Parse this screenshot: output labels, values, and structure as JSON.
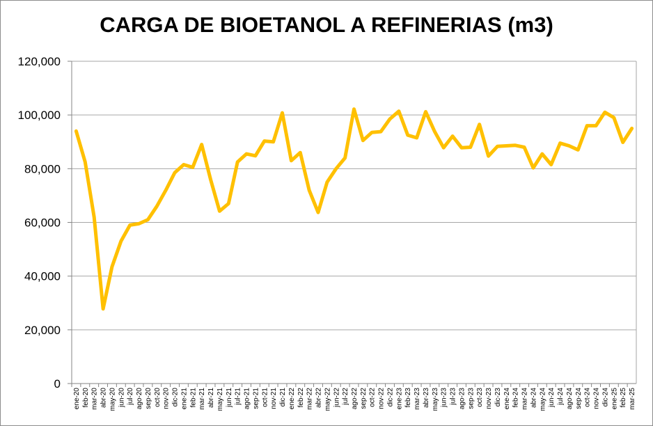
{
  "chart_data": {
    "type": "line",
    "title": "CARGA DE BIOETANOL A REFINERIAS (m3)",
    "xlabel": "",
    "ylabel": "",
    "ylim": [
      0,
      120000
    ],
    "yticks": [
      "0",
      "20,000",
      "40,000",
      "60,000",
      "80,000",
      "100,000",
      "120,000"
    ],
    "grid": true,
    "line_color": "#FFC000",
    "categories": [
      "ene-20",
      "feb-20",
      "mar-20",
      "abr-20",
      "may-20",
      "jun-20",
      "jul-20",
      "ago-20",
      "sep-20",
      "oct-20",
      "nov-20",
      "dic-20",
      "ene-21",
      "feb-21",
      "mar-21",
      "abr-21",
      "may-21",
      "jun-21",
      "jul-21",
      "ago-21",
      "sep-21",
      "oct-21",
      "nov-21",
      "dic-21",
      "ene-22",
      "feb-22",
      "mar-22",
      "abr-22",
      "may-22",
      "jun-22",
      "jul-22",
      "ago-22",
      "sep-22",
      "oct-22",
      "nov-22",
      "dic-22",
      "ene-23",
      "feb-23",
      "mar-23",
      "abr-23",
      "may-23",
      "jun-23",
      "jul-23",
      "ago-23",
      "sep-23",
      "oct-23",
      "nov-23",
      "dic-23",
      "ene-24",
      "feb-24",
      "mar-24",
      "abr-24",
      "may-24",
      "jun-24",
      "jul-24",
      "ago-24",
      "sep-24",
      "oct-24",
      "nov-24",
      "dic-24",
      "ene-25",
      "feb-25",
      "mar-25"
    ],
    "series": [
      {
        "name": "",
        "values": [
          94000,
          82500,
          62000,
          27800,
          43500,
          53000,
          59000,
          59500,
          61000,
          66000,
          72000,
          78500,
          81500,
          80500,
          89000,
          76000,
          64200,
          67000,
          82500,
          85500,
          84800,
          90300,
          90000,
          100800,
          83000,
          86000,
          72000,
          63700,
          75000,
          80000,
          84000,
          102200,
          90500,
          93500,
          93800,
          98500,
          101400,
          92500,
          91500,
          101200,
          93800,
          87800,
          92100,
          87800,
          88000,
          96500,
          84700,
          88300,
          88500,
          88700,
          88000,
          80300,
          85500,
          81500,
          89500,
          88500,
          87000,
          96000,
          96000,
          101000,
          99000,
          89800,
          95000
        ]
      }
    ]
  }
}
